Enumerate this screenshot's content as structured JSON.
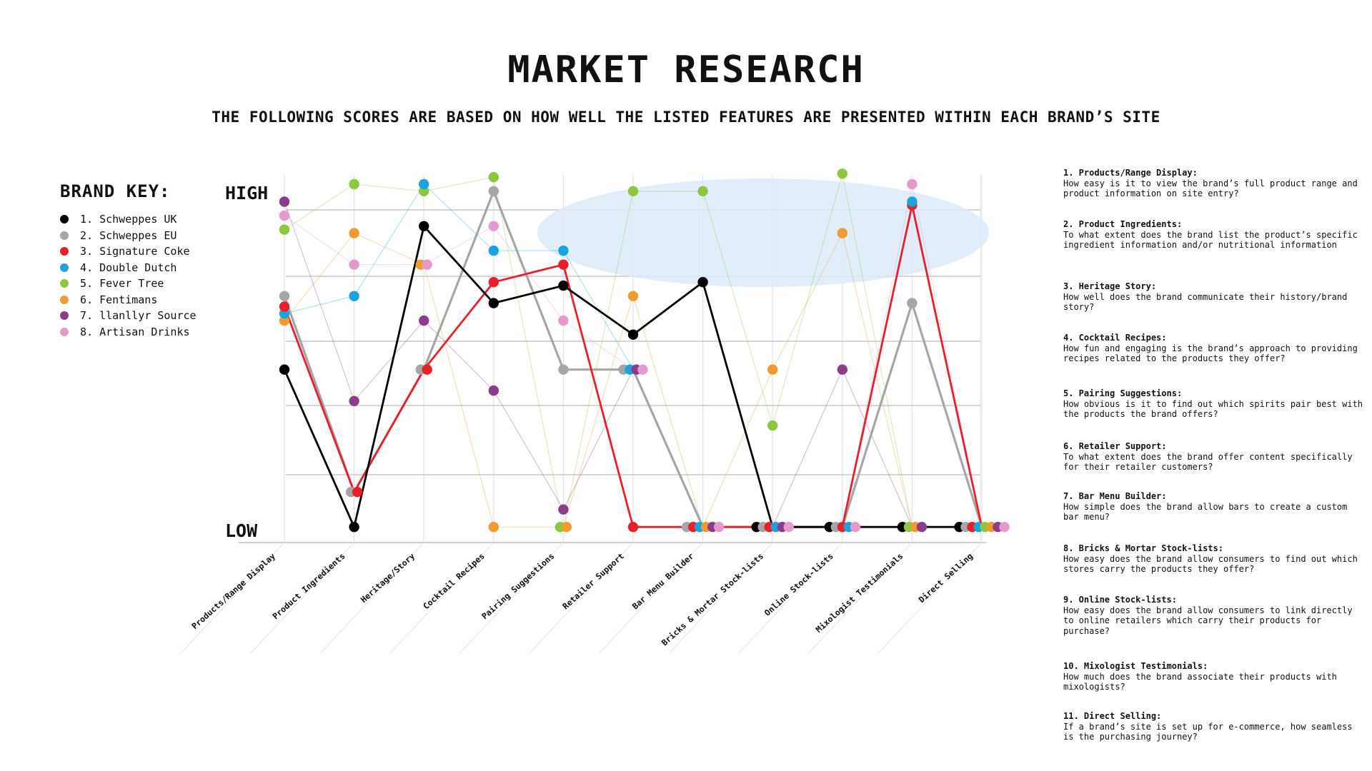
{
  "header": {
    "title": "MARKET RESEARCH",
    "subtitle": "THE FOLLOWING SCORES ARE BASED ON HOW WELL THE LISTED FEATURES ARE PRESENTED WITHIN EACH BRAND’S SITE"
  },
  "brand_key": {
    "heading": "BRAND KEY:",
    "items": [
      {
        "label": "1. Schweppes UK",
        "color": "#000000"
      },
      {
        "label": "2. Schweppes EU",
        "color": "#a6a6a8"
      },
      {
        "label": "3. Signature Coke",
        "color": "#e8202a"
      },
      {
        "label": "4. Double Dutch",
        "color": "#1aa3dc"
      },
      {
        "label": "5. Fever Tree",
        "color": "#8dc63f"
      },
      {
        "label": "6. Fentimans",
        "color": "#f09a2f"
      },
      {
        "label": "7. llanllyr Source",
        "color": "#8b3d8b"
      },
      {
        "label": "8. Artisan Drinks",
        "color": "#e49bcb"
      }
    ]
  },
  "features": [
    {
      "title": "1. Products/Range Display:",
      "desc": "How easy is it to view the brand’s full product range and product information on site entry?"
    },
    {
      "title": "2. Product Ingredients:",
      "desc": "To what extent does the brand list the product’s specific ingredient information and/or nutritional information"
    },
    {
      "title": "3. Heritage Story:",
      "desc": "How well does the brand communicate their history/brand story?"
    },
    {
      "title": "4. Cocktail Recipes:",
      "desc": "How fun and engaging is the brand’s approach to providing recipes related to the products they offer?"
    },
    {
      "title": "5. Pairing Suggestions:",
      "desc": "How obvious is it to find out which spirits pair best with the products the brand offers?"
    },
    {
      "title": "6. Retailer Support:",
      "desc": "To what extent does the brand offer content specifically for their retailer customers?"
    },
    {
      "title": "7. Bar Menu Builder:",
      "desc": "How simple does the brand allow bars to create a custom bar menu?"
    },
    {
      "title": "8. Bricks & Mortar Stock-lists:",
      "desc": "How easy does the brand allow consumers to find out which stores carry the products they offer?"
    },
    {
      "title": "9. Online Stock-lists:",
      "desc": "How easy does the brand allow consumers to link directly to online retailers which carry their products for purchase?"
    },
    {
      "title": "10. Mixologist Testimonials:",
      "desc": "How much does the brand associate their products with mixologists?"
    },
    {
      "title": "11. Direct Selling:",
      "desc": "If a brand’s site is set up for e-commerce, how seamless is the purchasing journey?"
    }
  ],
  "chart_data": {
    "type": "line",
    "y_high_label": "HIGH",
    "y_low_label": "LOW",
    "ylim": [
      0,
      100
    ],
    "categories": [
      "Products/Range Display",
      "Product Ingredients",
      "Heritage/Story",
      "Cocktail Recipes",
      "Pairing Suggestions",
      "Retailer Support",
      "Bar Menu Builder",
      "Bricks & Mortar Stock-lists",
      "Online Stock-lists",
      "Mixologist Testimonials",
      "Direct Selling"
    ],
    "legend_position": "left",
    "highlight": "light blue ellipse over Retailer Support, Bar Menu Builder, Bricks & Mortar Stock-lists and Online Stock-lists near the top",
    "series": [
      {
        "name": "Schweppes UK",
        "color": "#000000",
        "values": [
          47,
          2,
          88,
          66,
          71,
          57,
          72,
          2,
          2,
          2,
          2
        ]
      },
      {
        "name": "Schweppes EU",
        "color": "#a6a6a8",
        "values": [
          68,
          12,
          47,
          98,
          47,
          47,
          2,
          2,
          2,
          66,
          2
        ]
      },
      {
        "name": "Signature Coke",
        "color": "#e8202a",
        "values": [
          65,
          12,
          47,
          72,
          77,
          2,
          2,
          2,
          2,
          94,
          2
        ]
      },
      {
        "name": "Double Dutch",
        "color": "#1aa3dc",
        "values": [
          63,
          68,
          100,
          81,
          81,
          47,
          2,
          2,
          2,
          95,
          2
        ]
      },
      {
        "name": "Fever Tree",
        "color": "#8dc63f",
        "values": [
          87,
          100,
          98,
          102,
          2,
          98,
          98,
          31,
          103,
          2,
          2
        ]
      },
      {
        "name": "Fentimans",
        "color": "#f09a2f",
        "values": [
          61,
          86,
          77,
          2,
          2,
          68,
          2,
          47,
          86,
          2,
          2
        ]
      },
      {
        "name": "llanllyr Source",
        "color": "#8b3d8b",
        "values": [
          95,
          38,
          61,
          41,
          7,
          47,
          2,
          2,
          47,
          2,
          2
        ]
      },
      {
        "name": "Artisan Drinks",
        "color": "#e49bcb",
        "values": [
          91,
          77,
          77,
          88,
          61,
          47,
          2,
          2,
          2,
          100,
          2
        ]
      }
    ]
  }
}
